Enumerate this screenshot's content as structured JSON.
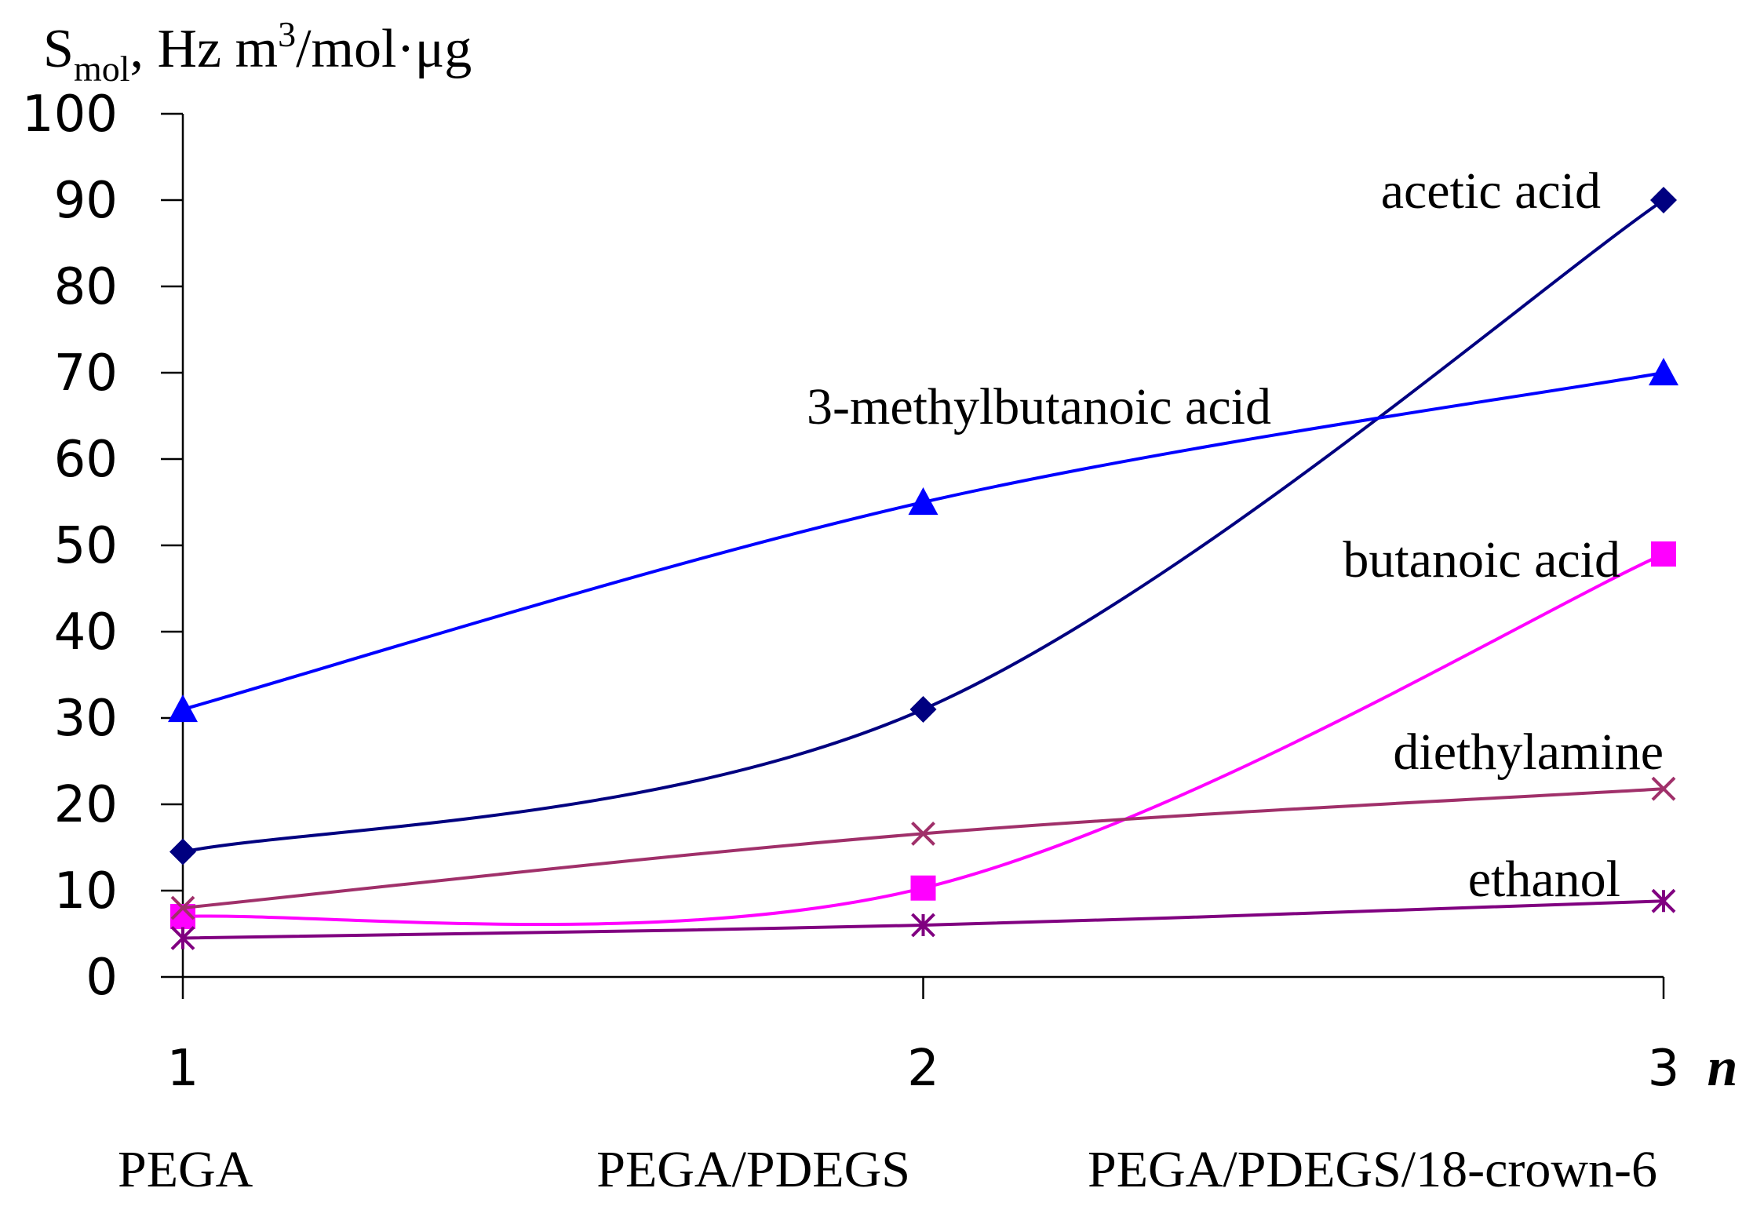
{
  "chart_data": {
    "type": "line",
    "ylabel": {
      "main": "S",
      "sub": "mol",
      "rest": ", Hz m",
      "sup": "3",
      "rest2": "/mol·μg"
    },
    "xlabel": "n",
    "ylim": [
      0,
      100
    ],
    "yticks": [
      "0",
      "10",
      "20",
      "30",
      "40",
      "50",
      "60",
      "70",
      "80",
      "90",
      "100"
    ],
    "x": [
      1,
      2,
      3
    ],
    "xticks": [
      "1",
      "2",
      "3"
    ],
    "categories": [
      "PEGA",
      "PEGA/PDEGS",
      "PEGA/PDEGS/18-crown-6"
    ],
    "grid": false,
    "series": [
      {
        "name": "acetic acid",
        "values": [
          14.5,
          31,
          90
        ],
        "color": "#000080",
        "marker": "diamond"
      },
      {
        "name": "3-methylbutanoic acid",
        "values": [
          31,
          55,
          70
        ],
        "color": "#0000FF",
        "marker": "triangle"
      },
      {
        "name": "butanoic acid",
        "values": [
          7,
          10.3,
          49
        ],
        "color": "#FF00FF",
        "marker": "square"
      },
      {
        "name": "diethylamine",
        "values": [
          8,
          16.6,
          21.8
        ],
        "color": "#A0306A",
        "marker": "x"
      },
      {
        "name": "ethanol",
        "values": [
          4.5,
          6,
          8.8
        ],
        "color": "#800080",
        "marker": "asterisk"
      }
    ]
  }
}
